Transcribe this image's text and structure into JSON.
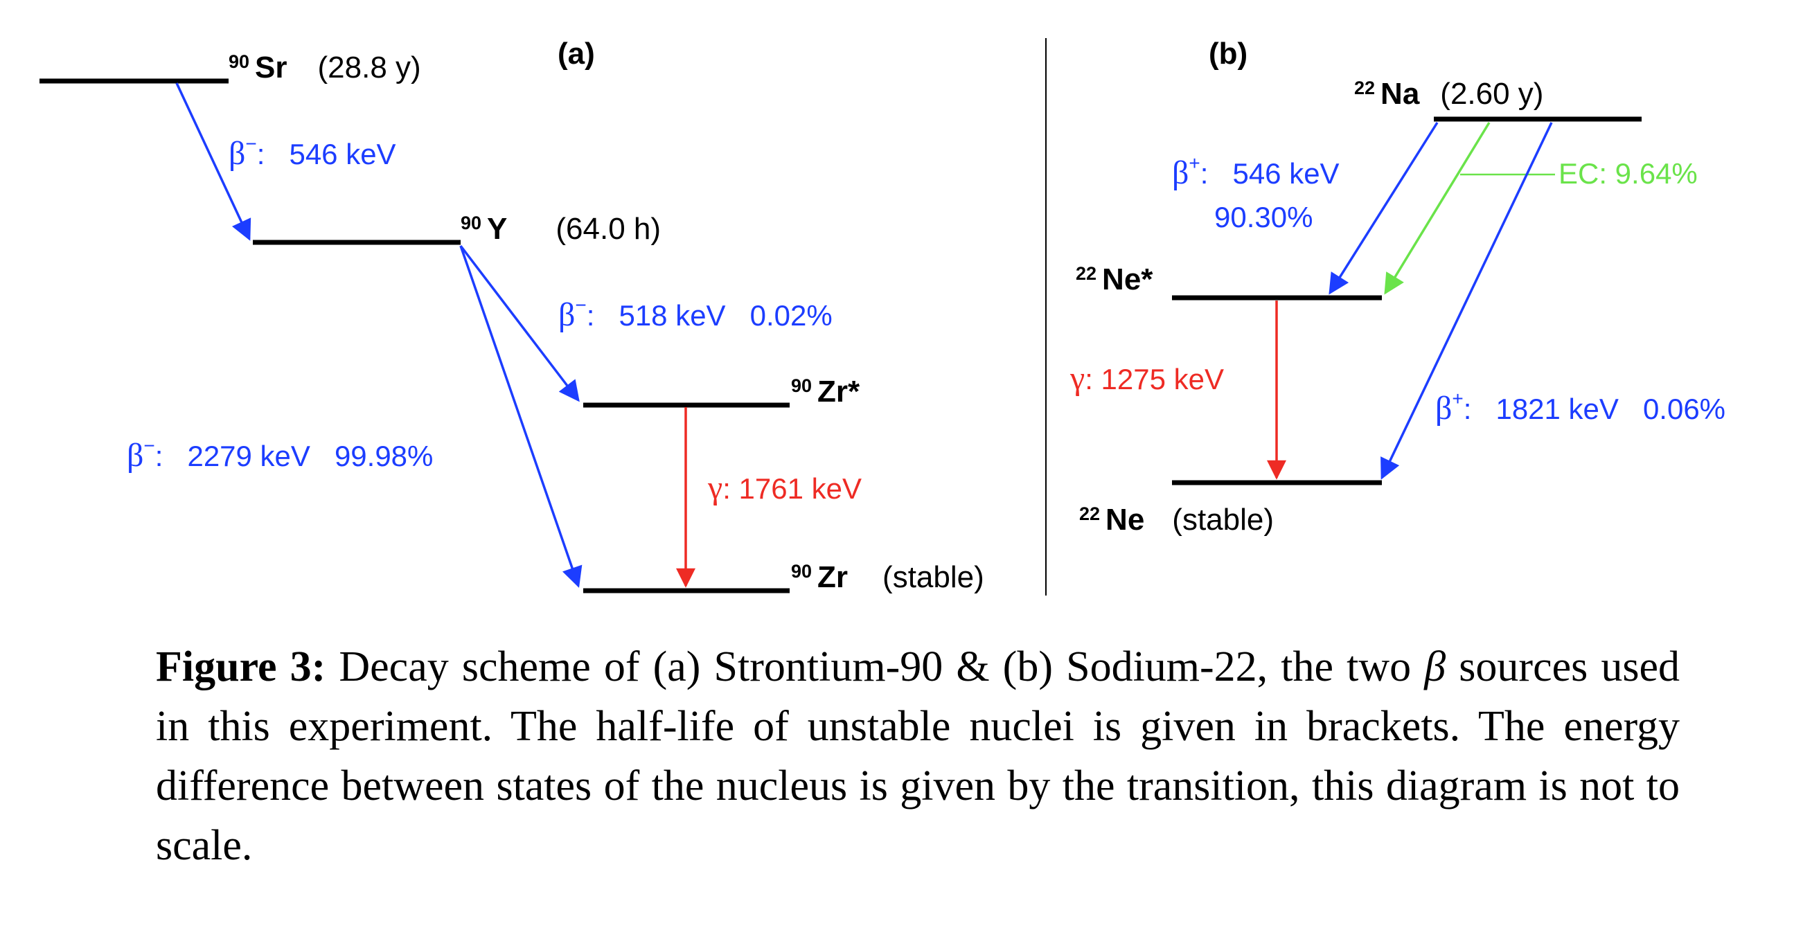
{
  "colors": {
    "blue": "#1c3dff",
    "red": "#ee2b24",
    "green": "#6ae34a",
    "black": "#000000",
    "caption": "#000000"
  },
  "panel_a": {
    "label": "(a)",
    "sr": {
      "mass": "90",
      "symbol": "Sr",
      "halflife": "(28.8 y)"
    },
    "y": {
      "mass": "90",
      "symbol": "Y",
      "halflife": "(64.0 h)"
    },
    "zr_excited": {
      "mass": "90",
      "symbol": "Zr*"
    },
    "zr": {
      "mass": "90",
      "symbol": "Zr",
      "note": "(stable)"
    },
    "beta_sr": {
      "symbol": "β",
      "sign": "−",
      "text": ":   546 keV"
    },
    "beta_y1": {
      "symbol": "β",
      "sign": "−",
      "text": ":   518 keV   0.02%"
    },
    "beta_y2": {
      "symbol": "β",
      "sign": "−",
      "text": ":   2279 keV   99.98%"
    },
    "gamma": {
      "symbol": "γ",
      "text": ": 1761 keV"
    }
  },
  "panel_b": {
    "label": "(b)",
    "na": {
      "mass": "22",
      "symbol": "Na",
      "halflife": "(2.60 y)"
    },
    "ne_excited": {
      "mass": "22",
      "symbol": "Ne*"
    },
    "ne": {
      "mass": "22",
      "symbol": "Ne",
      "note": "(stable)"
    },
    "beta_plus1": {
      "symbol": "β",
      "sign": "+",
      "text": ":   546 keV",
      "branch": "90.30%"
    },
    "ec": {
      "text": "EC: 9.64%"
    },
    "beta_plus2": {
      "symbol": "β",
      "sign": "+",
      "text": ":   1821 keV   0.06%"
    },
    "gamma": {
      "symbol": "γ",
      "text": ": 1275 keV"
    }
  },
  "caption": {
    "label": "Figure 3:",
    "text_before": " Decay scheme of (a) Strontium-90 & (b) Sodium-22, the two ",
    "beta": "β",
    "text_after": " sources used in this experiment.  The half-life of unstable nuclei is given in brackets. The energy difference between states of the nucleus is given by the transition, this diagram is not to scale."
  }
}
